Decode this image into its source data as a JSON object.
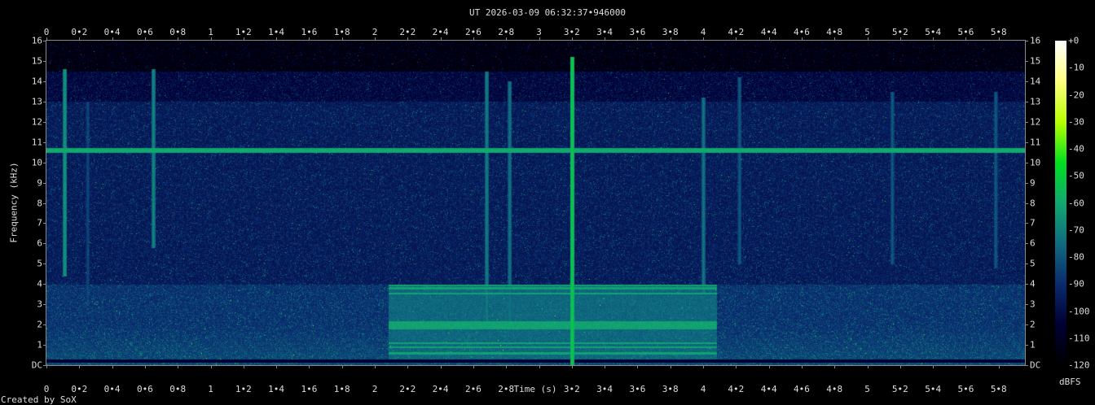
{
  "title": "UT 2026-03-09 06:32:37•946000",
  "footer": "Created by SoX",
  "chart_data": {
    "type": "heatmap",
    "xlabel": "Time (s)",
    "ylabel": "Frequency (kHz)",
    "colorbar_label": "dBFS",
    "xlim": [
      0,
      5.96
    ],
    "ylim": [
      0,
      16
    ],
    "zlim": [
      -120,
      0
    ],
    "x_ticks": [
      0,
      0.2,
      0.4,
      0.6,
      0.8,
      1,
      1.2,
      1.4,
      1.6,
      1.8,
      2,
      2.2,
      2.4,
      2.6,
      2.8,
      3,
      3.2,
      3.4,
      3.6,
      3.8,
      4,
      4.2,
      4.4,
      4.6,
      4.8,
      5,
      5.2,
      5.4,
      5.6,
      5.8
    ],
    "x_tick_labels": [
      "0",
      "0•2",
      "0•4",
      "0•6",
      "0•8",
      "1",
      "1•2",
      "1•4",
      "1•6",
      "1•8",
      "2",
      "2•2",
      "2•4",
      "2•6",
      "2•8",
      "3",
      "3•2",
      "3•4",
      "3•6",
      "3•8",
      "4",
      "4•2",
      "4•4",
      "4•6",
      "4•8",
      "5",
      "5•2",
      "5•4",
      "5•6",
      "5•8"
    ],
    "y_ticks": [
      0,
      1,
      2,
      3,
      4,
      5,
      6,
      7,
      8,
      9,
      10,
      11,
      12,
      13,
      14,
      15,
      16
    ],
    "y_tick_labels": [
      "DC",
      "1",
      "2",
      "3",
      "4",
      "5",
      "6",
      "7",
      "8",
      "9",
      "10",
      "11",
      "12",
      "13",
      "14",
      "15",
      "16"
    ],
    "colorbar_ticks": [
      0,
      -10,
      -20,
      -30,
      -40,
      -50,
      -60,
      -70,
      -80,
      -90,
      -100,
      -110,
      -120
    ],
    "colorbar_tick_labels": [
      "+0",
      "-10",
      "-20",
      "-30",
      "-40",
      "-50",
      "-60",
      "-70",
      "-80",
      "-90",
      "-100",
      "-110",
      "-120"
    ],
    "colormap": [
      "#000000",
      "#000033",
      "#0a2a6e",
      "#0f6b80",
      "#12a870",
      "#00e020",
      "#b8ff00",
      "#ffff80",
      "#ffffff"
    ],
    "noise_floor_db": [
      {
        "f_from": 0,
        "f_to": 4,
        "db": -86
      },
      {
        "f_from": 4,
        "f_to": 13,
        "db": -93
      },
      {
        "f_from": 13,
        "f_to": 14.5,
        "db": -100
      },
      {
        "f_from": 14.5,
        "f_to": 16,
        "db": -113
      }
    ],
    "tones": [
      {
        "freq_khz": 10.6,
        "t_from": 0,
        "t_to": 5.96,
        "db": -60
      }
    ],
    "burst": {
      "t_from": 2.08,
      "t_to": 4.08,
      "f_from": 0.3,
      "f_to": 4.0,
      "bands_khz": [
        3.95,
        3.8,
        3.55,
        2.15,
        2.05,
        1.95,
        1.85,
        1.1,
        0.9,
        0.6
      ],
      "db": -64
    },
    "transients": [
      {
        "t": 0.11,
        "f_from": 4.4,
        "f_to": 14.6,
        "db": -66
      },
      {
        "t": 0.25,
        "f_from": 3,
        "f_to": 13,
        "db": -84
      },
      {
        "t": 0.65,
        "f_from": 5.8,
        "f_to": 14.6,
        "db": -70
      },
      {
        "t": 2.68,
        "f_from": 1.8,
        "f_to": 14.5,
        "db": -72
      },
      {
        "t": 2.82,
        "f_from": 1.7,
        "f_to": 14.0,
        "db": -74
      },
      {
        "t": 3.2,
        "f_from": 0,
        "f_to": 15.2,
        "db": -52
      },
      {
        "t": 4.0,
        "f_from": 3.5,
        "f_to": 13.2,
        "db": -74
      },
      {
        "t": 4.22,
        "f_from": 5,
        "f_to": 14.2,
        "db": -80
      },
      {
        "t": 5.15,
        "f_from": 5,
        "f_to": 13.5,
        "db": -80
      },
      {
        "t": 5.78,
        "f_from": 4.8,
        "f_to": 13.5,
        "db": -80
      }
    ]
  }
}
